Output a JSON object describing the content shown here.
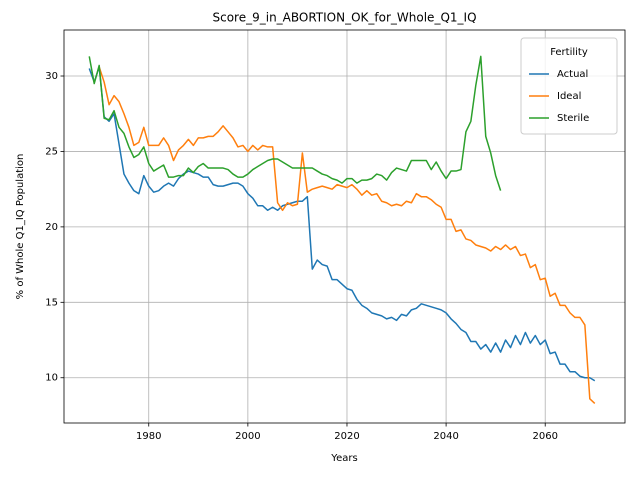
{
  "chart_data": {
    "type": "line",
    "title": "Score_9_in_ABORTION_OK_for_Whole_Q1_IQ",
    "xlabel": "Years",
    "ylabel": "% of Whole Q1_IQ Population",
    "x": [
      1968,
      1969,
      1970,
      1971,
      1972,
      1973,
      1974,
      1975,
      1976,
      1977,
      1978,
      1979,
      1980,
      1981,
      1982,
      1983,
      1984,
      1985,
      1986,
      1987,
      1988,
      1989,
      1990,
      1991,
      1992,
      1993,
      1994,
      1995,
      1996,
      1997,
      1998,
      1999,
      2000,
      2001,
      2002,
      2003,
      2004,
      2005,
      2006,
      2007,
      2008,
      2009,
      2010,
      2011,
      2012,
      2013,
      2014,
      2015,
      2016,
      2017,
      2018,
      2019,
      2020,
      2021,
      2022,
      2023,
      2024,
      2025,
      2026,
      2027,
      2028,
      2029,
      2030,
      2031,
      2032,
      2033,
      2034,
      2035,
      2036,
      2037,
      2038,
      2039,
      2040,
      2041,
      2042,
      2043,
      2044,
      2045,
      2046,
      2047,
      2048,
      2049,
      2050,
      2051,
      2052,
      2053,
      2054,
      2055,
      2056,
      2057,
      2058,
      2059,
      2060,
      2061,
      2062,
      2063,
      2064,
      2065,
      2066,
      2067,
      2068,
      2069,
      2070
    ],
    "series": [
      {
        "name": "Actual",
        "color": "#1f77b4",
        "values": [
          30.5,
          29.6,
          30.6,
          27.3,
          27.0,
          27.5,
          25.5,
          23.5,
          22.9,
          22.4,
          22.2,
          23.4,
          22.7,
          22.3,
          22.4,
          22.7,
          22.9,
          22.7,
          23.2,
          23.5,
          23.7,
          23.6,
          23.5,
          23.3,
          23.3,
          22.8,
          22.7,
          22.7,
          22.8,
          22.9,
          22.9,
          22.7,
          22.2,
          21.9,
          21.4,
          21.4,
          21.1,
          21.3,
          21.1,
          21.4,
          21.5,
          21.6,
          21.7,
          21.7,
          22.0,
          17.2,
          17.8,
          17.5,
          17.4,
          16.5,
          16.5,
          16.2,
          15.9,
          15.8,
          15.2,
          14.8,
          14.6,
          14.3,
          14.2,
          14.1,
          13.9,
          14.0,
          13.8,
          14.2,
          14.1,
          14.5,
          14.6,
          14.9,
          14.8,
          14.7,
          14.6,
          14.5,
          14.3,
          13.9,
          13.6,
          13.2,
          13.0,
          12.4,
          12.4,
          11.9,
          12.2,
          11.7,
          12.3,
          11.7,
          12.5,
          12.0,
          12.8,
          12.2,
          13.0,
          12.3,
          12.8,
          12.2,
          12.5,
          11.6,
          11.7,
          10.9,
          10.9,
          10.4,
          10.4,
          10.1,
          10.0,
          10.0,
          9.8
        ]
      },
      {
        "name": "Ideal",
        "color": "#ff7f0e",
        "values": [
          null,
          null,
          30.6,
          29.6,
          28.1,
          28.7,
          28.3,
          27.5,
          26.6,
          25.4,
          25.6,
          26.6,
          25.4,
          25.4,
          25.4,
          25.9,
          25.4,
          24.4,
          25.1,
          25.4,
          25.8,
          25.4,
          25.9,
          25.9,
          26.0,
          26.0,
          26.3,
          26.7,
          26.3,
          25.9,
          25.3,
          25.4,
          25.0,
          25.4,
          25.1,
          25.4,
          25.3,
          25.3,
          21.6,
          21.1,
          21.6,
          21.4,
          21.5,
          24.9,
          22.3,
          22.5,
          22.6,
          22.7,
          22.6,
          22.5,
          22.8,
          22.7,
          22.6,
          22.8,
          22.5,
          22.1,
          22.4,
          22.1,
          22.2,
          21.7,
          21.6,
          21.4,
          21.5,
          21.4,
          21.7,
          21.6,
          22.2,
          22.0,
          22.0,
          21.8,
          21.5,
          21.3,
          20.5,
          20.5,
          19.7,
          19.8,
          19.2,
          19.1,
          18.8,
          18.7,
          18.6,
          18.4,
          18.7,
          18.5,
          18.8,
          18.5,
          18.7,
          18.1,
          18.2,
          17.3,
          17.5,
          16.5,
          16.6,
          15.4,
          15.6,
          14.8,
          14.8,
          14.3,
          14.0,
          14.0,
          13.5,
          8.6,
          8.3
        ]
      },
      {
        "name": "Sterile",
        "color": "#2ca02c",
        "values": [
          31.3,
          29.5,
          30.7,
          27.2,
          27.1,
          27.7,
          26.6,
          26.2,
          25.3,
          24.6,
          24.8,
          25.3,
          24.2,
          23.7,
          23.9,
          24.1,
          23.3,
          23.3,
          23.4,
          23.4,
          23.9,
          23.6,
          24.0,
          24.2,
          23.9,
          23.9,
          23.9,
          23.9,
          23.8,
          23.5,
          23.3,
          23.3,
          23.5,
          23.8,
          24.0,
          24.2,
          24.4,
          24.5,
          24.5,
          24.3,
          24.1,
          23.9,
          23.9,
          23.9,
          23.9,
          23.9,
          23.7,
          23.5,
          23.4,
          23.2,
          23.1,
          22.9,
          23.2,
          23.2,
          22.9,
          23.1,
          23.1,
          23.2,
          23.5,
          23.4,
          23.1,
          23.6,
          23.9,
          23.8,
          23.7,
          24.4,
          24.4,
          24.4,
          24.4,
          23.8,
          24.3,
          23.7,
          23.2,
          23.7,
          23.7,
          23.8,
          26.3,
          27.0,
          29.4,
          31.3,
          26.0,
          24.9,
          23.4,
          22.4,
          null,
          null,
          null,
          null,
          null,
          null,
          null,
          null,
          null,
          null,
          null,
          null,
          null,
          null,
          null,
          null,
          null,
          null,
          null
        ]
      }
    ],
    "xlim": [
      1962.9,
      2076.1
    ],
    "ylim": [
      7.0,
      33.05
    ],
    "xticks": [
      1980,
      2000,
      2020,
      2040,
      2060
    ],
    "yticks": [
      10,
      15,
      20,
      25,
      30
    ],
    "grid": true,
    "legend_title": "Fertility",
    "legend_loc": "upper right"
  }
}
